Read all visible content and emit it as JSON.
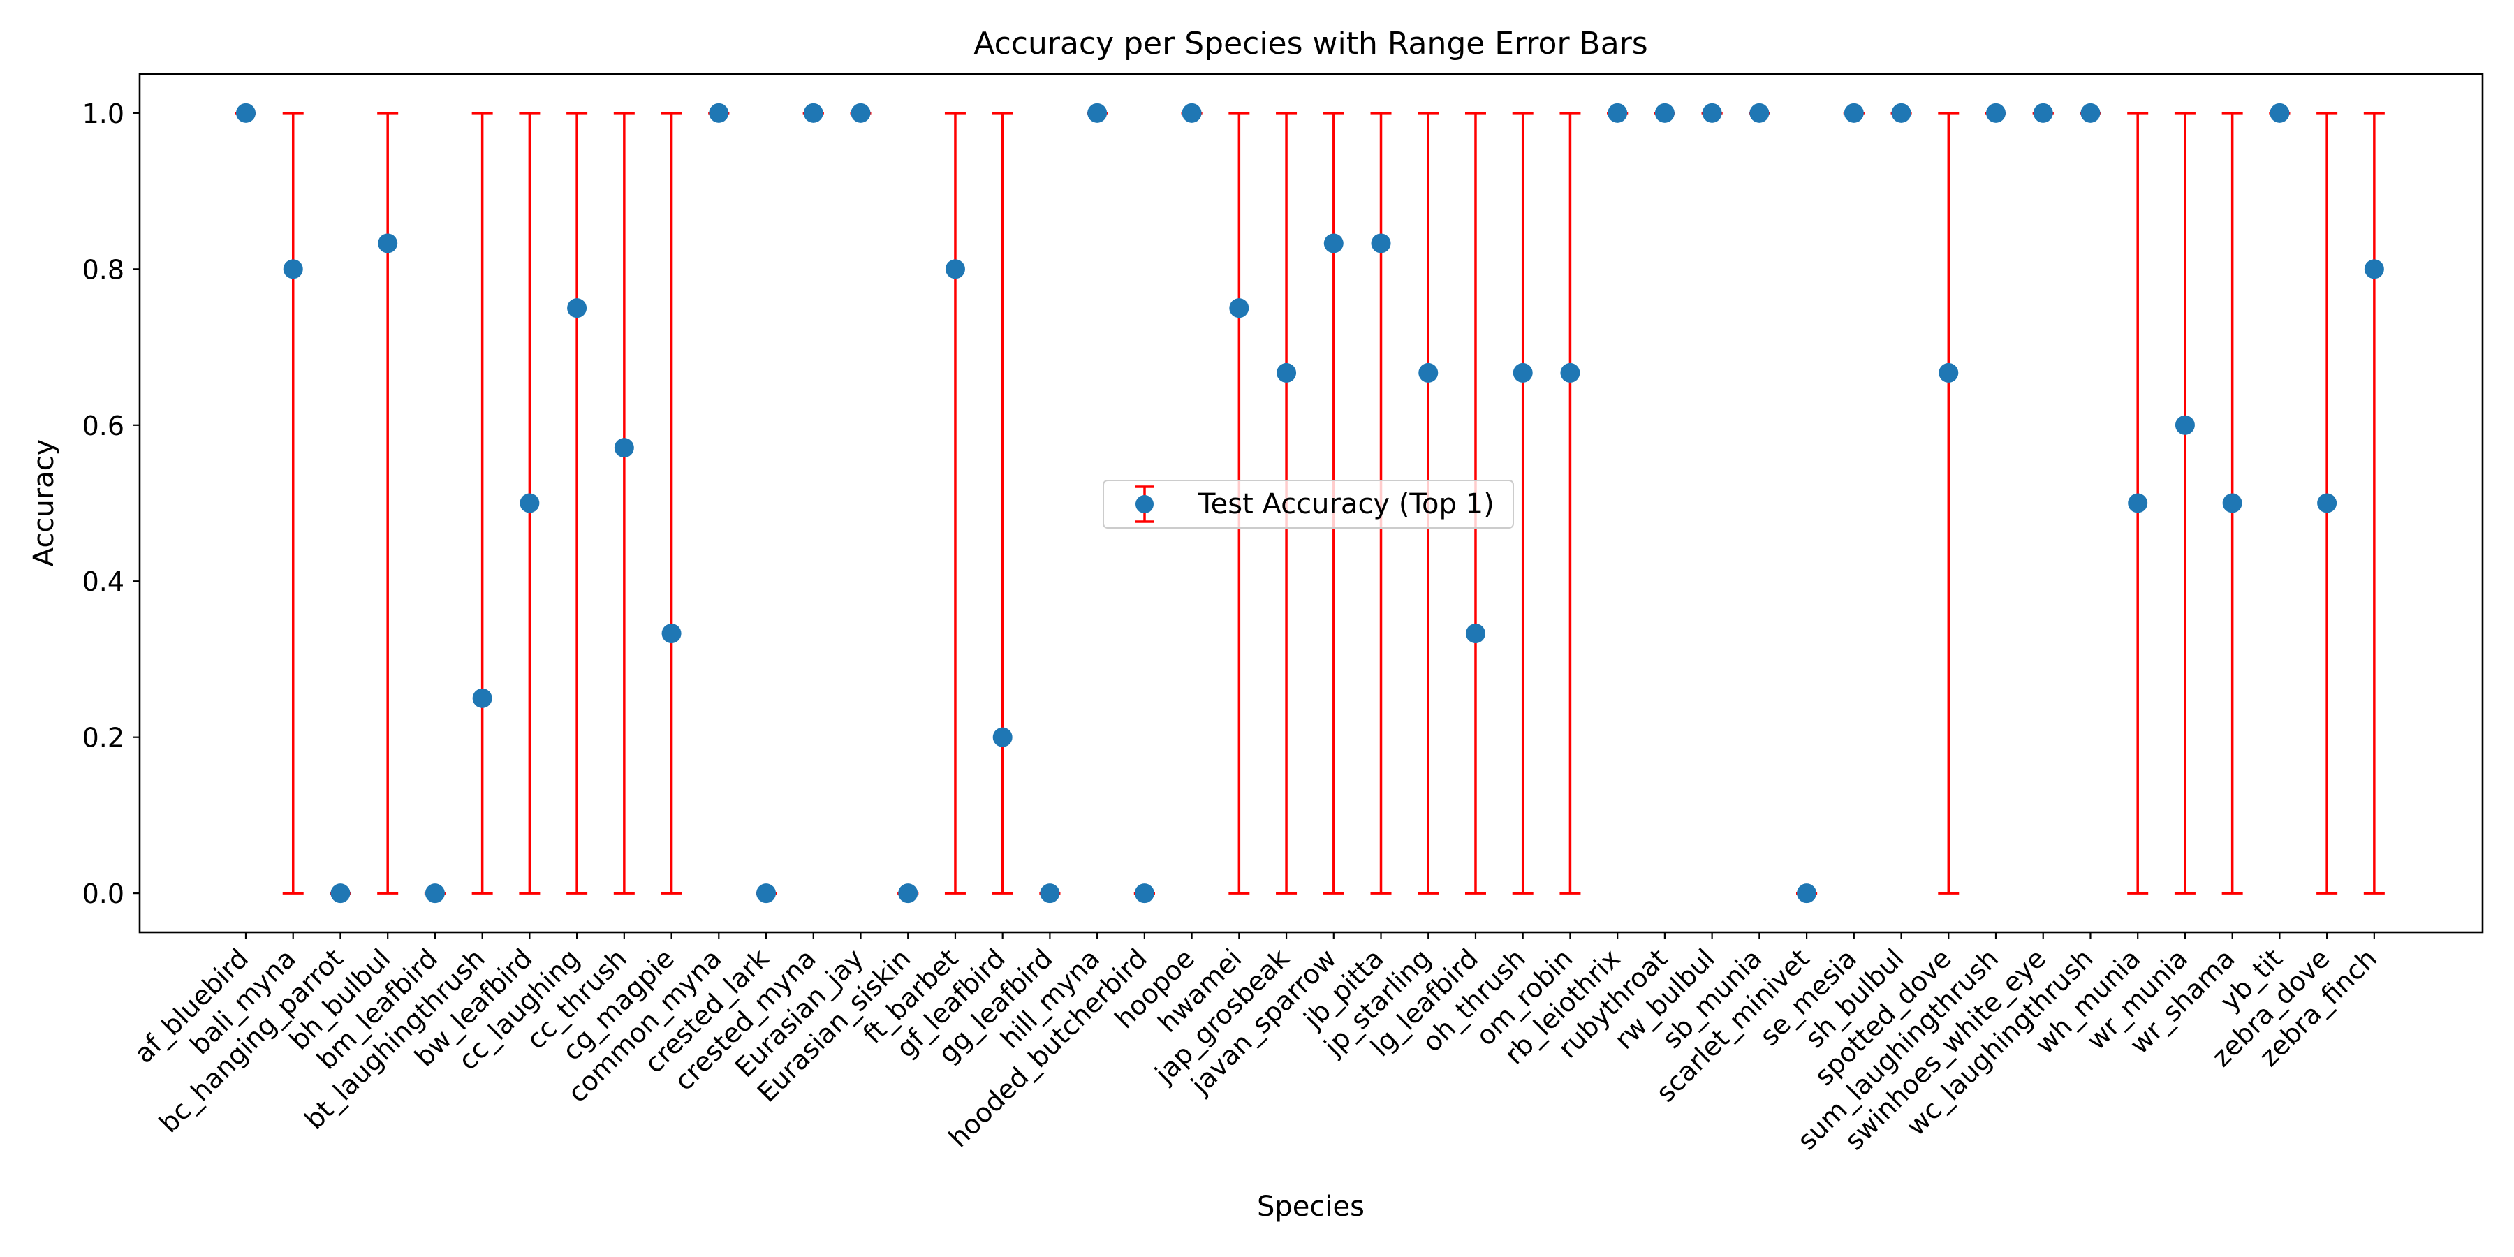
{
  "chart_data": {
    "type": "scatter",
    "title": "Accuracy per Species with Range Error Bars",
    "xlabel": "Species",
    "ylabel": "Accuracy",
    "ylim": [
      -0.05,
      1.05
    ],
    "yticks": [
      0.0,
      0.2,
      0.4,
      0.6,
      0.8,
      1.0
    ],
    "ytick_labels": [
      "0.0",
      "0.2",
      "0.4",
      "0.6",
      "0.8",
      "1.0"
    ],
    "grid": false,
    "legend_position": "center",
    "categories": [
      "af_bluebird",
      "bali_myna",
      "bc_hanging_parrot",
      "bh_bulbul",
      "bm_leafbird",
      "bt_laughingthrush",
      "bw_leafbird",
      "cc_laughing",
      "cc_thrush",
      "cg_magpie",
      "common_myna",
      "crested_lark",
      "crested_myna",
      "Eurasian_jay",
      "Eurasian_siskin",
      "ft_barbet",
      "gf_leafbird",
      "gg_leafbird",
      "hill_myna",
      "hooded_butcherbird",
      "hoopoe",
      "hwamei",
      "jap_grosbeak",
      "javan_sparrow",
      "jb_pitta",
      "jp_starling",
      "lg_leafbird",
      "oh_thrush",
      "om_robin",
      "rb_leiothrix",
      "rubythroat",
      "rw_bulbul",
      "sb_munia",
      "scarlet_minivet",
      "se_mesia",
      "sh_bulbul",
      "spotted_dove",
      "sum_laughingthrush",
      "swinhoes_white_eye",
      "wc_laughingthrush",
      "wh_munia",
      "wr_munia",
      "wr_shama",
      "yb_tit",
      "zebra_dove",
      "zebra_finch"
    ],
    "series": [
      {
        "name": "Test Accuracy (Top 1)",
        "marker_color": "#1f77b4",
        "error_color": "#ff0000",
        "values": [
          1.0,
          0.8,
          0.0,
          0.833,
          0.0,
          0.25,
          0.5,
          0.75,
          0.571,
          0.333,
          1.0,
          0.0,
          1.0,
          1.0,
          0.0,
          0.8,
          0.2,
          0.0,
          1.0,
          0.0,
          1.0,
          0.75,
          0.667,
          0.833,
          0.833,
          0.667,
          0.333,
          0.667,
          0.667,
          1.0,
          1.0,
          1.0,
          1.0,
          0.0,
          1.0,
          1.0,
          0.667,
          1.0,
          1.0,
          1.0,
          0.5,
          0.6,
          0.5,
          1.0,
          0.5,
          0.8
        ],
        "error_low": [
          1.0,
          0.0,
          0.0,
          0.0,
          0.0,
          0.0,
          0.0,
          0.0,
          0.0,
          0.0,
          1.0,
          0.0,
          1.0,
          1.0,
          0.0,
          0.0,
          0.0,
          0.0,
          1.0,
          0.0,
          1.0,
          0.0,
          0.0,
          0.0,
          0.0,
          0.0,
          0.0,
          0.0,
          0.0,
          1.0,
          1.0,
          1.0,
          1.0,
          0.0,
          1.0,
          1.0,
          0.0,
          1.0,
          1.0,
          1.0,
          0.0,
          0.0,
          0.0,
          1.0,
          0.0,
          0.0
        ],
        "error_high": [
          1.0,
          1.0,
          0.0,
          1.0,
          0.0,
          1.0,
          1.0,
          1.0,
          1.0,
          1.0,
          1.0,
          0.0,
          1.0,
          1.0,
          0.0,
          1.0,
          1.0,
          0.0,
          1.0,
          0.0,
          1.0,
          1.0,
          1.0,
          1.0,
          1.0,
          1.0,
          1.0,
          1.0,
          1.0,
          1.0,
          1.0,
          1.0,
          1.0,
          0.0,
          1.0,
          1.0,
          1.0,
          1.0,
          1.0,
          1.0,
          1.0,
          1.0,
          1.0,
          1.0,
          1.0,
          1.0
        ]
      }
    ]
  }
}
